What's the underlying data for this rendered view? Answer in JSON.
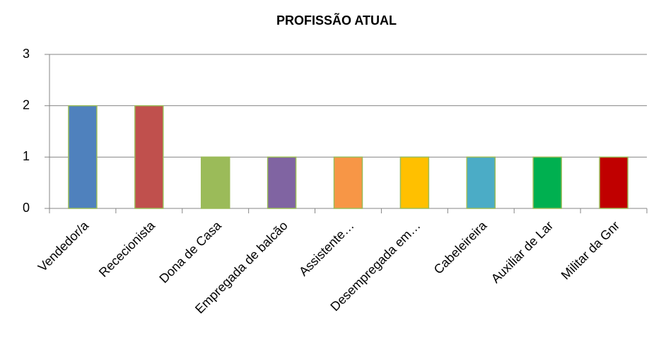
{
  "chart_data": {
    "type": "bar",
    "title": "PROFISSÃO ATUAL",
    "categories": [
      "Vendedor/a",
      "Rececionista",
      "Dona de Casa",
      "Empregada de balcão",
      "Assistente…",
      "Desempregada em…",
      "Cabeleireira",
      "Auxiliar de Lar",
      "Militar da Gnr"
    ],
    "values": [
      2,
      2,
      1,
      1,
      1,
      1,
      1,
      1,
      1
    ],
    "colors": [
      "#4f81bd",
      "#c0504d",
      "#9bbb59",
      "#8064a2",
      "#f79646",
      "#ffc000",
      "#4bacc6",
      "#00b050",
      "#c00000"
    ],
    "ylim": [
      0,
      3
    ],
    "yticks": [
      0,
      1,
      2,
      3
    ],
    "grid": true
  }
}
